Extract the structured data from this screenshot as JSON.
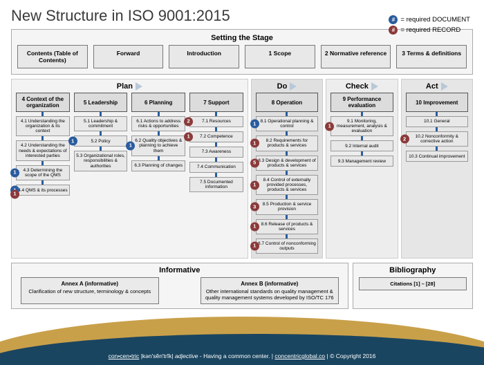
{
  "title": "New Structure in ISO 9001:2015",
  "legend": {
    "doc_symbol": "#",
    "doc_label": " = required DOCUMENT",
    "rec_symbol": "#",
    "rec_label": " = required RECORD"
  },
  "colors": {
    "doc": "#2a5c9e",
    "rec": "#8b3a3a",
    "box_bg": "#e8e8e8",
    "box_border": "#777",
    "section_bg": "#f5f5f5",
    "connector": "#2a5c9e",
    "wave_top": "#c9a04a",
    "wave_bottom": "#1a4560"
  },
  "stage": {
    "title": "Setting the Stage",
    "boxes": [
      "Contents\n(Table of Contents)",
      "Forward",
      "Introduction",
      "1 Scope",
      "2 Normative reference",
      "3 Terms & definitions"
    ]
  },
  "pdca": [
    {
      "label": "Plan",
      "columns": [
        {
          "head": "4 Context of the organization",
          "subs": [
            {
              "t": "4.1 Understanding the organization & its context"
            },
            {
              "t": "4.2 Understanding the needs & expectations of interested parties"
            },
            {
              "t": "4.3 Determining the scope of the QMS",
              "badge": {
                "n": "1",
                "k": "doc"
              }
            },
            {
              "t": "4.4 QMS & its processes",
              "badge": {
                "n": "1",
                "k": "doc"
              },
              "badge2": {
                "n": "1",
                "k": "rec"
              }
            }
          ]
        },
        {
          "head": "5 Leadership",
          "subs": [
            {
              "t": "5.1 Leadership & commitment"
            },
            {
              "t": "5.2 Policy",
              "badge": {
                "n": "1",
                "k": "doc"
              }
            },
            {
              "t": "5.3 Organizational roles, responsibilities & authorities"
            }
          ]
        },
        {
          "head": "6 Planning",
          "subs": [
            {
              "t": "6.1 Actions to address risks & opportunities"
            },
            {
              "t": "6.2 Quality objectives & planning to achieve them",
              "badge": {
                "n": "1",
                "k": "doc"
              }
            },
            {
              "t": "6.3 Planning of changes"
            }
          ]
        },
        {
          "head": "7 Support",
          "subs": [
            {
              "t": "7.1 Resources",
              "badge": {
                "n": "2",
                "k": "rec"
              }
            },
            {
              "t": "7.2 Competence",
              "badge": {
                "n": "1",
                "k": "rec"
              }
            },
            {
              "t": "7.3 Awareness"
            },
            {
              "t": "7.4 Communication"
            },
            {
              "t": "7.5 Documented information"
            }
          ]
        }
      ]
    },
    {
      "label": "Do",
      "columns": [
        {
          "head": "8 Operation",
          "subs": [
            {
              "t": "8.1 Operational planning & control",
              "badge": {
                "n": "1",
                "k": "doc"
              }
            },
            {
              "t": "8.2 Requirements for products & services",
              "badge": {
                "n": "1",
                "k": "rec"
              }
            },
            {
              "t": "8.3 Design & development of products & services",
              "badge": {
                "n": "5",
                "k": "rec"
              }
            },
            {
              "t": "8.4 Control of externally provided processes, products & services",
              "badge": {
                "n": "1",
                "k": "rec"
              }
            },
            {
              "t": "8.5 Production & service provision",
              "badge": {
                "n": "3",
                "k": "rec"
              }
            },
            {
              "t": "8.6 Release of products & services",
              "badge": {
                "n": "1",
                "k": "rec"
              }
            },
            {
              "t": "8.7 Control of nonconforming outputs",
              "badge": {
                "n": "1",
                "k": "rec"
              }
            }
          ]
        }
      ]
    },
    {
      "label": "Check",
      "columns": [
        {
          "head": "9 Performance evaluation",
          "subs": [
            {
              "t": "9.1 Monitoring, measurement, analysis & evaluation",
              "badge": {
                "n": "1",
                "k": "rec"
              }
            },
            {
              "t": "9.2 Internal audit"
            },
            {
              "t": "9.3 Management review"
            }
          ]
        }
      ]
    },
    {
      "label": "Act",
      "columns": [
        {
          "head": "10 Improvement",
          "subs": [
            {
              "t": "10.1 General"
            },
            {
              "t": "10.2 Nonconformity & corrective action",
              "badge": {
                "n": "2",
                "k": "rec"
              }
            },
            {
              "t": "10.3 Continual improvement"
            }
          ]
        }
      ]
    }
  ],
  "informative": {
    "title": "Informative",
    "boxes": [
      {
        "hdr": "Annex A (informative)",
        "body": "Clarification of new structure, terminology & concepts"
      },
      {
        "hdr": "Annex B (informative)",
        "body": "Other international standards on quality management & quality management systems developed by ISO/TC 176"
      }
    ]
  },
  "biblio": {
    "title": "Bibliography",
    "box": "Citations [1] – [28]"
  },
  "footer": {
    "word": "con•cen•tric",
    "pron": "|kən'sĕn'trĭk|",
    "pos": "adjective",
    "def": " - Having a common center.   |   ",
    "url": "concentricglobal.co",
    "copy": " | © Copyright 2016"
  }
}
